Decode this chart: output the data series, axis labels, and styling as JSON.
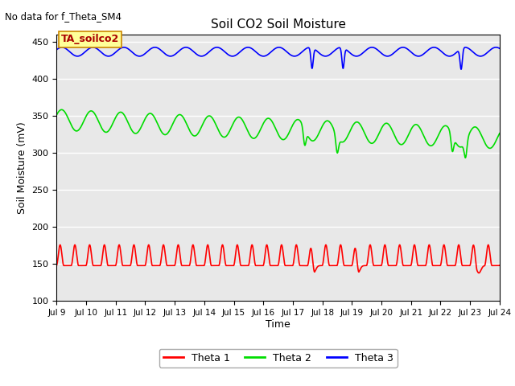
{
  "title": "Soil CO2 Soil Moisture",
  "xlabel": "Time",
  "ylabel": "Soil Moisture (mV)",
  "no_data_text": "No data for f_Theta_SM4",
  "annotation_text": "TA_soilco2",
  "ylim": [
    100,
    460
  ],
  "yticks": [
    100,
    150,
    200,
    250,
    300,
    350,
    400,
    450
  ],
  "x_start_day": 9,
  "x_end_day": 24,
  "x_tick_days": [
    9,
    10,
    11,
    12,
    13,
    14,
    15,
    16,
    17,
    18,
    19,
    20,
    21,
    22,
    23,
    24
  ],
  "colors": {
    "theta1": "#ff0000",
    "theta2": "#00dd00",
    "theta3": "#0000ff",
    "background": "#e8e8e8",
    "annotation_bg": "#ffff99",
    "annotation_border": "#cc8800",
    "annotation_text": "#aa0000"
  },
  "legend_labels": [
    "Theta 1",
    "Theta 2",
    "Theta 3"
  ],
  "grid_color": "#ffffff",
  "line_width": 1.2
}
